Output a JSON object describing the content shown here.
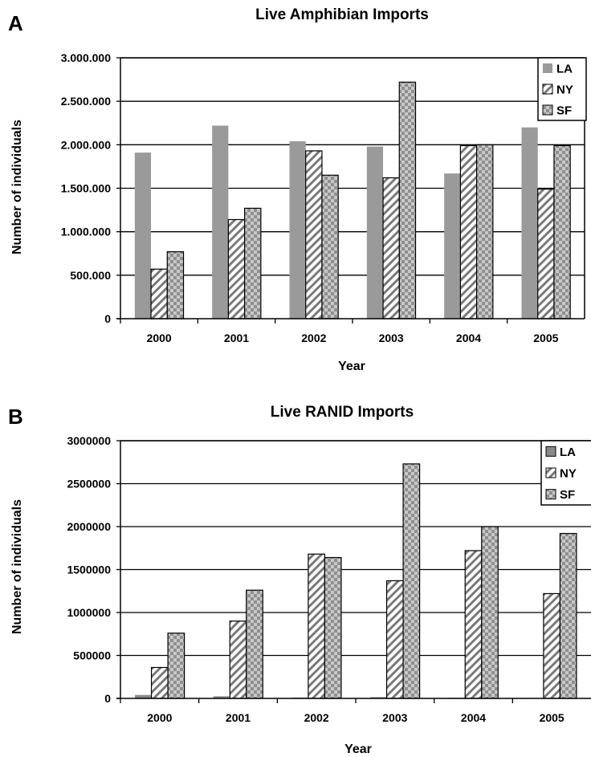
{
  "chart_data": [
    {
      "panel": "A",
      "type": "bar",
      "title": "Live Amphibian Imports",
      "xlabel": "Year",
      "ylabel": "Number of individuals",
      "categories": [
        "2000",
        "2001",
        "2002",
        "2003",
        "2004",
        "2005"
      ],
      "ylim": [
        0,
        3000000
      ],
      "yticks": [
        0,
        500000,
        1000000,
        1500000,
        2000000,
        2500000,
        3000000
      ],
      "ytick_labels": [
        "0",
        "500.000",
        "1.000.000",
        "1.500.000",
        "2.000.000",
        "2.500.000",
        "3.000.000"
      ],
      "grid": "horizontal",
      "legend": "top-right",
      "series": [
        {
          "name": "LA",
          "color": "#9a9a9a",
          "pattern": "solid",
          "values": [
            1910000,
            2220000,
            2040000,
            1980000,
            1670000,
            2200000
          ]
        },
        {
          "name": "NY",
          "color": "#ffffff",
          "pattern": "diagonal",
          "values": [
            570000,
            1140000,
            1930000,
            1620000,
            1990000,
            1490000
          ]
        },
        {
          "name": "SF",
          "color": "#b8b8b8",
          "pattern": "checker",
          "values": [
            770000,
            1270000,
            1650000,
            2720000,
            2000000,
            1990000
          ]
        }
      ]
    },
    {
      "panel": "B",
      "type": "bar",
      "title": "Live RANID Imports",
      "xlabel": "Year",
      "ylabel": "Number of individuals",
      "categories": [
        "2000",
        "2001",
        "2002",
        "2003",
        "2004",
        "2005"
      ],
      "ylim": [
        0,
        3000000
      ],
      "yticks": [
        0,
        500000,
        1000000,
        1500000,
        2000000,
        2500000,
        3000000
      ],
      "ytick_labels": [
        "0",
        "500000",
        "1000000",
        "1500000",
        "2000000",
        "2500000",
        "3000000"
      ],
      "grid": "horizontal",
      "legend": "top-right",
      "series": [
        {
          "name": "LA",
          "color": "#8a8a8a",
          "pattern": "solid",
          "values": [
            40000,
            25000,
            10000,
            15000,
            8000,
            5000
          ]
        },
        {
          "name": "NY",
          "color": "#ffffff",
          "pattern": "diagonal",
          "values": [
            360000,
            900000,
            1680000,
            1370000,
            1720000,
            1220000
          ]
        },
        {
          "name": "SF",
          "color": "#b8b8b8",
          "pattern": "checker",
          "values": [
            760000,
            1260000,
            1640000,
            2730000,
            2000000,
            1920000
          ]
        }
      ]
    }
  ]
}
